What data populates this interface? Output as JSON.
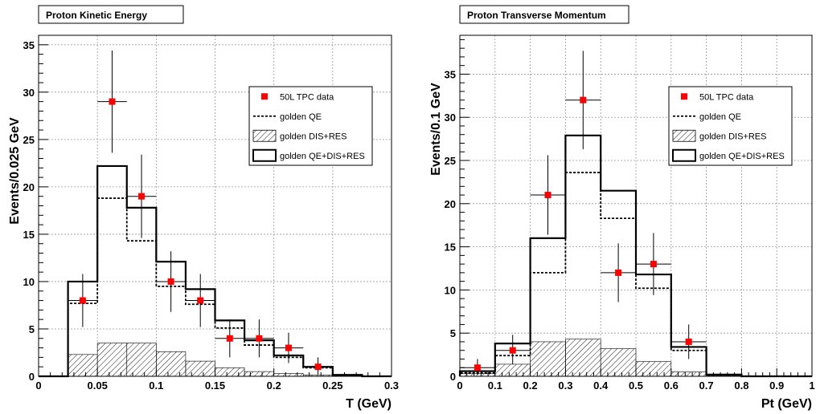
{
  "colors": {
    "data_marker": "#ff0000",
    "line": "#000000",
    "hatch": "#000000"
  },
  "legend_entries": [
    "50L TPC data",
    "golden QE",
    "golden DIS+RES",
    "golden QE+DIS+RES"
  ],
  "chart_data": [
    {
      "type": "bar",
      "title": "Proton Kinetic Energy",
      "xlabel": "T (GeV)",
      "ylabel": "Events/0.025 GeV",
      "xlim": [
        0,
        0.3
      ],
      "ylim": [
        0,
        36
      ],
      "x_ticks": [
        0,
        0.05,
        0.1,
        0.15,
        0.2,
        0.25,
        0.3
      ],
      "x_tick_labels": [
        "0",
        "0.05",
        "0.1",
        "0.15",
        "0.2",
        "0.25",
        "0.3"
      ],
      "y_ticks": [
        0,
        5,
        10,
        15,
        20,
        25,
        30,
        35
      ],
      "y_tick_labels": [
        "0",
        "5",
        "10",
        "15",
        "20",
        "25",
        "30",
        "35"
      ],
      "grid": true,
      "legend_position": "top-right",
      "bin_edges": [
        0,
        0.025,
        0.05,
        0.075,
        0.1,
        0.125,
        0.15,
        0.175,
        0.2,
        0.225,
        0.25,
        0.275,
        0.3
      ],
      "series": [
        {
          "name": "golden QE+DIS+RES",
          "style": "histogram-solid",
          "values": [
            0,
            10,
            22.2,
            17.8,
            12.1,
            9.2,
            5.9,
            3.8,
            2.2,
            1.0,
            0.15,
            0,
            0
          ]
        },
        {
          "name": "golden QE",
          "style": "histogram-dashed",
          "values": [
            0,
            7.7,
            18.8,
            14.3,
            9.5,
            7.6,
            5.1,
            3.3,
            2.0,
            0.9,
            0.1,
            0,
            0
          ]
        },
        {
          "name": "golden DIS+RES",
          "style": "histogram-hatched",
          "values": [
            0,
            2.3,
            3.5,
            3.5,
            2.6,
            1.6,
            0.9,
            0.5,
            0.3,
            0.15,
            0.05,
            0,
            0
          ]
        },
        {
          "name": "50L TPC data",
          "style": "points",
          "x": [
            0.0375,
            0.0625,
            0.0875,
            0.1125,
            0.1375,
            0.1625,
            0.1875,
            0.2125,
            0.2375
          ],
          "y": [
            8,
            29,
            19,
            10,
            8,
            4,
            4,
            3,
            1
          ],
          "y_err_low": [
            2.8,
            5.4,
            4.4,
            3.2,
            2.8,
            2.0,
            2.0,
            1.6,
            0.8
          ],
          "y_err_high": [
            2.8,
            5.4,
            4.4,
            3.2,
            2.8,
            2.0,
            2.0,
            1.6,
            1.0
          ],
          "x_err": 0.0125
        }
      ]
    },
    {
      "type": "bar",
      "title": "Proton Transverse Momentum",
      "xlabel": "Pt (GeV)",
      "ylabel": "Events/0.1 GeV",
      "xlim": [
        0,
        1
      ],
      "ylim": [
        0,
        39.5
      ],
      "x_ticks": [
        0,
        0.1,
        0.2,
        0.3,
        0.4,
        0.5,
        0.6,
        0.7,
        0.8,
        0.9,
        1
      ],
      "x_tick_labels": [
        "0",
        "0.1",
        "0.2",
        "0.3",
        "0.4",
        "0.5",
        "0.6",
        "0.7",
        "0.8",
        "0.9",
        "1"
      ],
      "y_ticks": [
        0,
        5,
        10,
        15,
        20,
        25,
        30,
        35
      ],
      "y_tick_labels": [
        "0",
        "5",
        "10",
        "15",
        "20",
        "25",
        "30",
        "35"
      ],
      "grid": true,
      "legend_position": "top-right",
      "bin_edges": [
        0,
        0.1,
        0.2,
        0.3,
        0.4,
        0.5,
        0.6,
        0.7,
        0.8,
        0.9,
        1.0
      ],
      "series": [
        {
          "name": "golden QE+DIS+RES",
          "style": "histogram-solid",
          "values": [
            0.6,
            3.8,
            16.0,
            27.9,
            21.5,
            11.8,
            3.4,
            0.2,
            0,
            0
          ]
        },
        {
          "name": "golden QE",
          "style": "histogram-dashed",
          "values": [
            0.4,
            2.4,
            12.0,
            23.6,
            18.3,
            10.2,
            3.0,
            0.15,
            0,
            0
          ]
        },
        {
          "name": "golden DIS+RES",
          "style": "histogram-hatched",
          "values": [
            0.3,
            1.4,
            4.0,
            4.3,
            3.2,
            1.7,
            0.5,
            0.05,
            0,
            0
          ]
        },
        {
          "name": "50L TPC data",
          "style": "points",
          "x": [
            0.05,
            0.15,
            0.25,
            0.35,
            0.45,
            0.55,
            0.65
          ],
          "y": [
            1,
            3,
            21,
            32,
            12,
            13,
            4
          ],
          "y_err_low": [
            0.8,
            1.6,
            4.6,
            5.7,
            3.4,
            3.6,
            2.0
          ],
          "y_err_high": [
            1.0,
            1.8,
            4.6,
            5.7,
            3.4,
            3.6,
            2.0
          ],
          "x_err": 0.05
        }
      ]
    }
  ]
}
